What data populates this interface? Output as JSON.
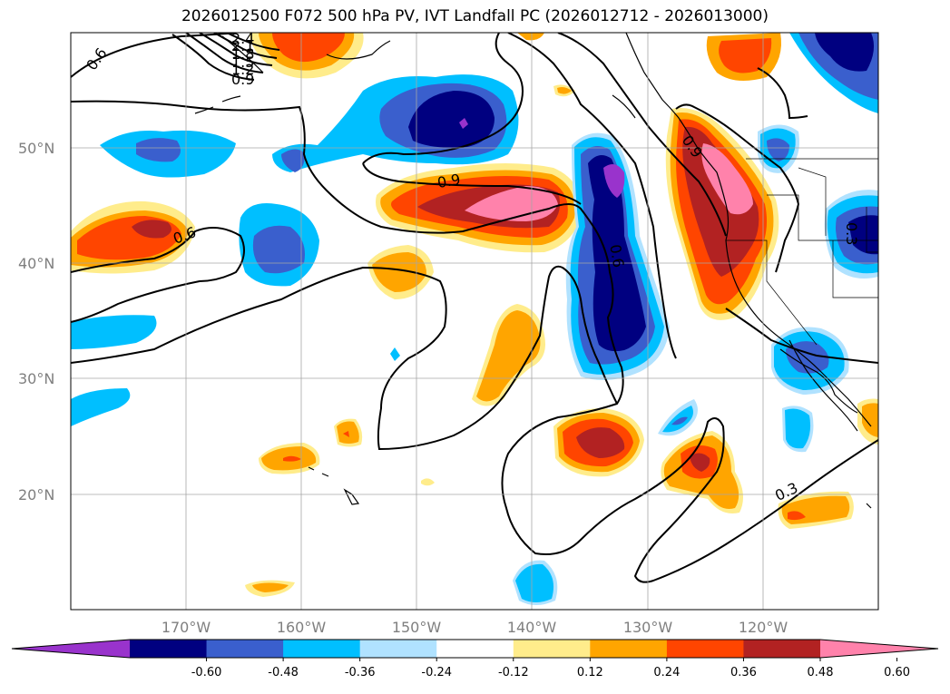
{
  "title": "2026012500 F072 500 hPa PV, IVT Landfall PC (2026012712 - 2026013000)",
  "map": {
    "lon_range": [
      -180,
      -110
    ],
    "lat_range": [
      10,
      60
    ],
    "lat_labels": [
      "50°N",
      "40°N",
      "30°N",
      "20°N"
    ],
    "lon_labels": [
      "170°W",
      "160°W",
      "150°W",
      "140°W",
      "130°W",
      "120°W"
    ],
    "gridlines": true
  },
  "contour_labels": [
    "0.6",
    "2.4",
    "2.1",
    "1.8",
    "1.5",
    "1.2",
    "0.9",
    "0.9",
    "0.6",
    "0.6",
    "0.9",
    "0.3",
    "0.3"
  ],
  "colorbar": {
    "ticks": [
      "-0.60",
      "-0.48",
      "-0.36",
      "-0.24",
      "-0.12",
      "0.12",
      "0.24",
      "0.36",
      "0.48",
      "0.60"
    ],
    "colors": [
      "#9933cc",
      "#000080",
      "#3a5fcd",
      "#00bfff",
      "#b0e2ff",
      "#ffffff",
      "#ffec8b",
      "#ffa500",
      "#ff4500",
      "#b22222",
      "#ff82ab"
    ],
    "extend": "both"
  }
}
